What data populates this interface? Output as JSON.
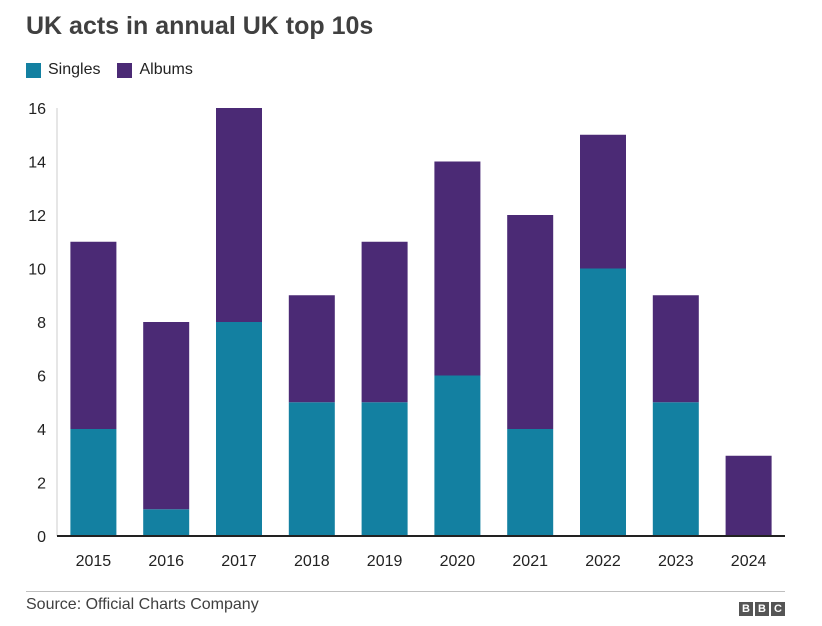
{
  "chart_data": {
    "type": "bar",
    "stacked": true,
    "title": "UK acts in annual UK top 10s",
    "categories": [
      "2015",
      "2016",
      "2017",
      "2018",
      "2019",
      "2020",
      "2021",
      "2022",
      "2023",
      "2024"
    ],
    "series": [
      {
        "name": "Singles",
        "color": "#1380a1",
        "values": [
          4,
          1,
          8,
          5,
          5,
          6,
          4,
          10,
          5,
          0
        ]
      },
      {
        "name": "Albums",
        "color": "#4b2a75",
        "values": [
          7,
          7,
          8,
          4,
          6,
          8,
          8,
          5,
          4,
          3
        ]
      }
    ],
    "xlabel": "",
    "ylabel": "",
    "ylim": [
      0,
      16
    ],
    "yticks": [
      0,
      2,
      4,
      6,
      8,
      10,
      12,
      14,
      16
    ],
    "grid": false,
    "legend_position": "top-left"
  },
  "footer": {
    "source": "Source: Official Charts Company",
    "logo_letters": [
      "B",
      "B",
      "C"
    ]
  }
}
